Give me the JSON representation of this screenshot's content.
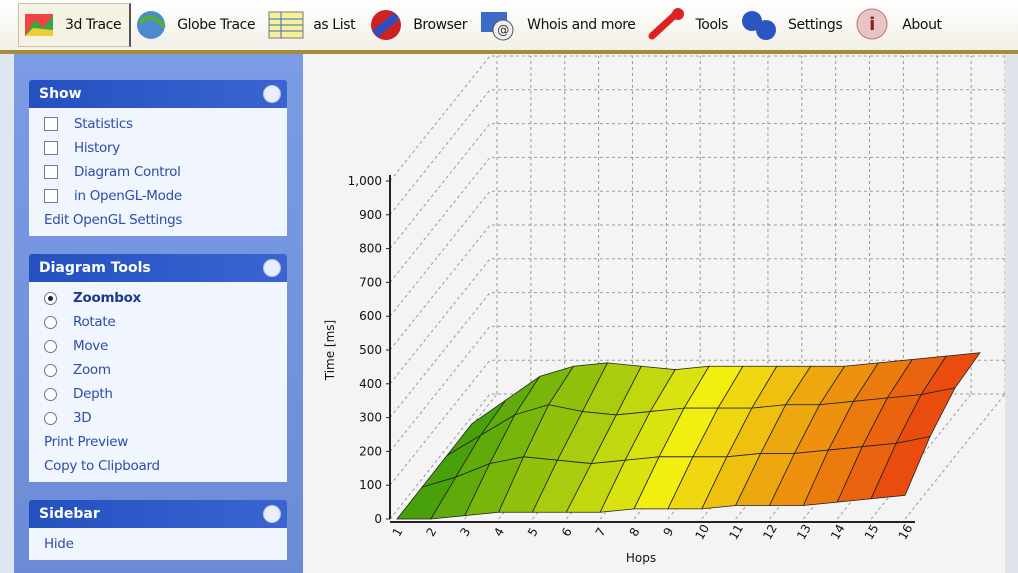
{
  "toolbar": [
    "3d Trace",
    "Globe Trace",
    "as List",
    "Browser",
    "Whois and more",
    "Tools",
    "Settings",
    "About"
  ],
  "panels": {
    "show": {
      "title": "Show",
      "checkboxes": [
        "Statistics",
        "History",
        "Diagram Control",
        "in OpenGL-Mode"
      ],
      "link": "Edit OpenGL Settings"
    },
    "diagram_tools": {
      "title": "Diagram Tools",
      "radios": [
        "Zoombox",
        "Rotate",
        "Move",
        "Zoom",
        "Depth",
        "3D"
      ],
      "links": [
        "Print Preview",
        "Copy to Clipboard"
      ]
    },
    "sidebar": {
      "title": "Sidebar",
      "link": "Hide"
    }
  },
  "chart_data": {
    "type": "surface",
    "y_label": "Time [ms]",
    "x_label": "Hops",
    "categories": [
      "1",
      "2",
      "3",
      "4",
      "5",
      "6",
      "7",
      "8",
      "9",
      "10",
      "11",
      "12",
      "13",
      "14",
      "15",
      "16"
    ],
    "series": [
      {
        "values": [
          0,
          0,
          10,
          20,
          20,
          20,
          20,
          30,
          30,
          30,
          40,
          40,
          40,
          50,
          60,
          70
        ]
      },
      {
        "values": [
          20,
          50,
          90,
          110,
          100,
          90,
          100,
          110,
          110,
          110,
          120,
          120,
          130,
          140,
          150,
          170
        ]
      },
      {
        "values": [
          40,
          100,
          160,
          190,
          170,
          160,
          170,
          180,
          180,
          180,
          190,
          190,
          200,
          210,
          220,
          240
        ]
      },
      {
        "values": [
          60,
          130,
          200,
          230,
          240,
          230,
          220,
          230,
          230,
          230,
          230,
          230,
          240,
          250,
          260,
          270
        ]
      }
    ],
    "color_scale": [
      "#3c9a0a",
      "#f2ee10",
      "#e8400e"
    ],
    "ylim": [
      0,
      1000
    ],
    "yticks": [
      0,
      100,
      200,
      300,
      400,
      500,
      600,
      700,
      800,
      900,
      {
        "value": 1000,
        "label": "1,000"
      }
    ],
    "grid": true
  }
}
